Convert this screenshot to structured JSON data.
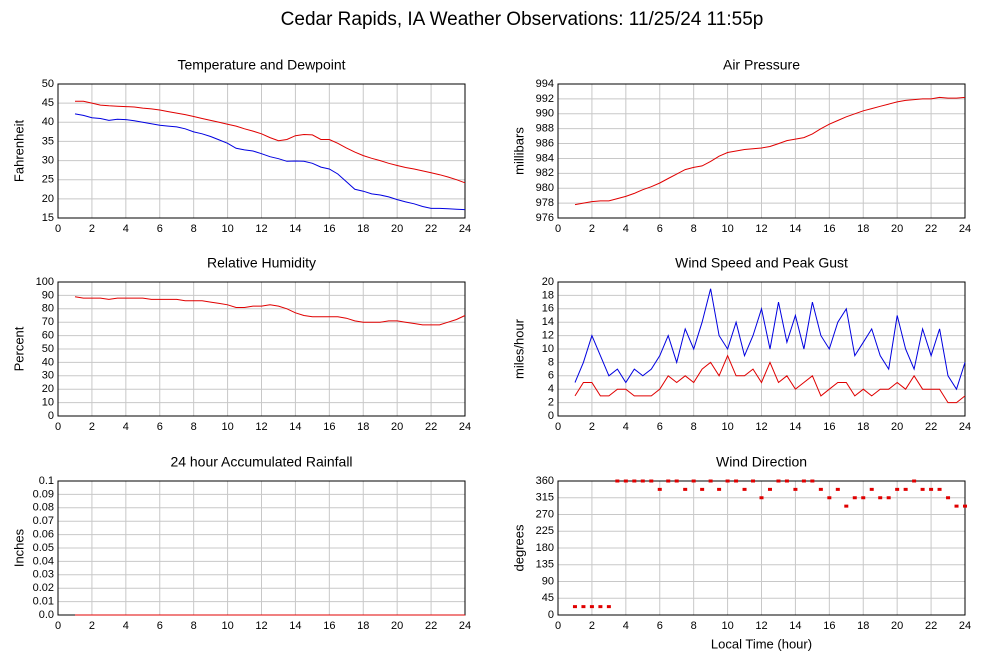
{
  "title": "Cedar Rapids, IA Weather Observations: 11/25/24 11:55p",
  "chart_data": [
    {
      "type": "line",
      "title": "Temperature and Dewpoint",
      "ylabel": "Fahrenheit",
      "grid": true,
      "xlim": [
        0,
        24
      ],
      "xticks": [
        0,
        2,
        4,
        6,
        8,
        10,
        12,
        14,
        16,
        18,
        20,
        22,
        24
      ],
      "ylim": [
        15,
        50
      ],
      "yticks": [
        15,
        20,
        25,
        30,
        35,
        40,
        45,
        50
      ],
      "x": [
        1,
        1.5,
        2,
        2.5,
        3,
        3.5,
        4,
        4.5,
        5,
        5.5,
        6,
        6.5,
        7,
        7.5,
        8,
        8.5,
        9,
        9.5,
        10,
        10.5,
        11,
        11.5,
        12,
        12.5,
        13,
        13.5,
        14,
        14.5,
        15,
        15.5,
        16,
        16.5,
        17,
        17.5,
        18,
        18.5,
        19,
        19.5,
        20,
        20.5,
        21,
        21.5,
        22,
        22.5,
        23,
        23.5,
        24
      ],
      "series": [
        {
          "color": "#e00000",
          "values": [
            45.5,
            45.5,
            45,
            44.5,
            44.3,
            44.2,
            44.1,
            44,
            43.7,
            43.5,
            43.2,
            42.8,
            42.4,
            42,
            41.5,
            41,
            40.5,
            40,
            39.5,
            39,
            38.3,
            37.7,
            37,
            36,
            35.2,
            35.5,
            36.5,
            36.8,
            36.7,
            35.5,
            35.5,
            34.5,
            33.3,
            32.2,
            31.3,
            30.6,
            30,
            29.3,
            28.7,
            28.2,
            27.8,
            27.3,
            26.8,
            26.3,
            25.7,
            25,
            24.2
          ]
        },
        {
          "color": "#0000e0",
          "values": [
            42.2,
            41.8,
            41.2,
            41,
            40.5,
            40.8,
            40.7,
            40.4,
            40,
            39.6,
            39.2,
            39,
            38.8,
            38.3,
            37.5,
            37,
            36.3,
            35.4,
            34.5,
            33.2,
            32.8,
            32.5,
            31.8,
            31,
            30.5,
            29.8,
            29.9,
            29.8,
            29.3,
            28.3,
            27.8,
            26.5,
            24.5,
            22.5,
            22,
            21.3,
            21,
            20.5,
            19.8,
            19.2,
            18.7,
            18,
            17.5,
            17.5,
            17.4,
            17.3,
            17.2
          ]
        }
      ]
    },
    {
      "type": "line",
      "title": "Air Pressure",
      "ylabel": "millibars",
      "grid": true,
      "xlim": [
        0,
        24
      ],
      "xticks": [
        0,
        2,
        4,
        6,
        8,
        10,
        12,
        14,
        16,
        18,
        20,
        22,
        24
      ],
      "ylim": [
        976,
        994
      ],
      "yticks": [
        976,
        978,
        980,
        982,
        984,
        986,
        988,
        990,
        992,
        994
      ],
      "x": [
        1,
        1.5,
        2,
        2.5,
        3,
        3.5,
        4,
        4.5,
        5,
        5.5,
        6,
        6.5,
        7,
        7.5,
        8,
        8.5,
        9,
        9.5,
        10,
        10.5,
        11,
        11.5,
        12,
        12.5,
        13,
        13.5,
        14,
        14.5,
        15,
        15.5,
        16,
        16.5,
        17,
        17.5,
        18,
        18.5,
        19,
        19.5,
        20,
        20.5,
        21,
        21.5,
        22,
        22.5,
        23,
        23.5,
        24
      ],
      "series": [
        {
          "color": "#e00000",
          "values": [
            977.8,
            978,
            978.2,
            978.3,
            978.3,
            978.6,
            978.9,
            979.3,
            979.8,
            980.2,
            980.7,
            981.3,
            981.9,
            982.5,
            982.8,
            983,
            983.6,
            984.3,
            984.8,
            985,
            985.2,
            985.3,
            985.4,
            985.6,
            986,
            986.4,
            986.6,
            986.8,
            987.3,
            988,
            988.6,
            989.1,
            989.6,
            990,
            990.4,
            990.7,
            991,
            991.3,
            991.6,
            991.8,
            991.9,
            992,
            992,
            992.2,
            992.1,
            992.1,
            992.2
          ]
        }
      ]
    },
    {
      "type": "line",
      "title": "Relative Humidity",
      "ylabel": "Percent",
      "grid": true,
      "xlim": [
        0,
        24
      ],
      "xticks": [
        0,
        2,
        4,
        6,
        8,
        10,
        12,
        14,
        16,
        18,
        20,
        22,
        24
      ],
      "ylim": [
        0,
        100
      ],
      "yticks": [
        0,
        10,
        20,
        30,
        40,
        50,
        60,
        70,
        80,
        90,
        100
      ],
      "x": [
        1,
        1.5,
        2,
        2.5,
        3,
        3.5,
        4,
        4.5,
        5,
        5.5,
        6,
        6.5,
        7,
        7.5,
        8,
        8.5,
        9,
        9.5,
        10,
        10.5,
        11,
        11.5,
        12,
        12.5,
        13,
        13.5,
        14,
        14.5,
        15,
        15.5,
        16,
        16.5,
        17,
        17.5,
        18,
        18.5,
        19,
        19.5,
        20,
        20.5,
        21,
        21.5,
        22,
        22.5,
        23,
        23.5,
        24
      ],
      "series": [
        {
          "color": "#e00000",
          "values": [
            89,
            88,
            88,
            88,
            87,
            88,
            88,
            88,
            88,
            87,
            87,
            87,
            87,
            86,
            86,
            86,
            85,
            84,
            83,
            81,
            81,
            82,
            82,
            83,
            82,
            80,
            77,
            75,
            74,
            74,
            74,
            74,
            73,
            71,
            70,
            70,
            70,
            71,
            71,
            70,
            69,
            68,
            68,
            68,
            70,
            72,
            75
          ]
        }
      ]
    },
    {
      "type": "line",
      "title": "Wind Speed and Peak Gust",
      "ylabel": "miles/hour",
      "grid": true,
      "xlim": [
        0,
        24
      ],
      "xticks": [
        0,
        2,
        4,
        6,
        8,
        10,
        12,
        14,
        16,
        18,
        20,
        22,
        24
      ],
      "ylim": [
        0,
        20
      ],
      "yticks": [
        0,
        2,
        4,
        6,
        8,
        10,
        12,
        14,
        16,
        18,
        20
      ],
      "x": [
        1,
        1.5,
        2,
        2.5,
        3,
        3.5,
        4,
        4.5,
        5,
        5.5,
        6,
        6.5,
        7,
        7.5,
        8,
        8.5,
        9,
        9.5,
        10,
        10.5,
        11,
        11.5,
        12,
        12.5,
        13,
        13.5,
        14,
        14.5,
        15,
        15.5,
        16,
        16.5,
        17,
        17.5,
        18,
        18.5,
        19,
        19.5,
        20,
        20.5,
        21,
        21.5,
        22,
        22.5,
        23,
        23.5,
        24
      ],
      "series": [
        {
          "color": "#0000e0",
          "values": [
            5,
            8,
            12,
            9,
            6,
            7,
            5,
            7,
            6,
            7,
            9,
            12,
            8,
            13,
            10,
            14,
            19,
            12,
            10,
            14,
            9,
            12,
            16,
            10,
            17,
            11,
            15,
            10,
            17,
            12,
            10,
            14,
            16,
            9,
            11,
            13,
            9,
            7,
            15,
            10,
            7,
            13,
            9,
            13,
            6,
            4,
            8
          ]
        },
        {
          "color": "#e00000",
          "values": [
            3,
            5,
            5,
            3,
            3,
            4,
            4,
            3,
            3,
            3,
            4,
            6,
            5,
            6,
            5,
            7,
            8,
            6,
            9,
            6,
            6,
            7,
            5,
            8,
            5,
            6,
            4,
            5,
            6,
            3,
            4,
            5,
            5,
            3,
            4,
            3,
            4,
            4,
            5,
            4,
            6,
            4,
            4,
            4,
            2,
            2,
            3
          ]
        }
      ]
    },
    {
      "type": "line",
      "title": "24 hour Accumulated Rainfall",
      "ylabel": "Inches",
      "grid": true,
      "xlim": [
        0,
        24
      ],
      "xticks": [
        0,
        2,
        4,
        6,
        8,
        10,
        12,
        14,
        16,
        18,
        20,
        22,
        24
      ],
      "ylim": [
        0,
        0.1
      ],
      "yticks": [
        {
          "value": 0,
          "label": "0.0"
        },
        0.01,
        0.02,
        0.03,
        0.04,
        0.05,
        0.06,
        0.07,
        0.08,
        0.09,
        0.1
      ],
      "x": [
        1,
        1.5,
        2,
        2.5,
        3,
        3.5,
        4,
        4.5,
        5,
        5.5,
        6,
        6.5,
        7,
        7.5,
        8,
        8.5,
        9,
        9.5,
        10,
        10.5,
        11,
        11.5,
        12,
        12.5,
        13,
        13.5,
        14,
        14.5,
        15,
        15.5,
        16,
        16.5,
        17,
        17.5,
        18,
        18.5,
        19,
        19.5,
        20,
        20.5,
        21,
        21.5,
        22,
        22.5,
        23,
        23.5,
        24
      ],
      "series": [
        {
          "color": "#e00000",
          "values": [
            0,
            0,
            0,
            0,
            0,
            0,
            0,
            0,
            0,
            0,
            0,
            0,
            0,
            0,
            0,
            0,
            0,
            0,
            0,
            0,
            0,
            0,
            0,
            0,
            0,
            0,
            0,
            0,
            0,
            0,
            0,
            0,
            0,
            0,
            0,
            0,
            0,
            0,
            0,
            0,
            0,
            0,
            0,
            0,
            0,
            0,
            0
          ]
        }
      ]
    },
    {
      "type": "scatter",
      "title": "Wind Direction",
      "ylabel": "degrees",
      "xlabel": "Local Time (hour)",
      "grid": true,
      "xlim": [
        0,
        24
      ],
      "xticks": [
        0,
        2,
        4,
        6,
        8,
        10,
        12,
        14,
        16,
        18,
        20,
        22,
        24
      ],
      "ylim": [
        0,
        360
      ],
      "yticks": [
        0,
        45,
        90,
        135,
        180,
        225,
        270,
        315,
        360
      ],
      "x": [
        1,
        1.5,
        2,
        2.5,
        3,
        3.5,
        4,
        4.5,
        5,
        5.5,
        6,
        6.5,
        7,
        7.5,
        8,
        8.5,
        9,
        9.5,
        10,
        10.5,
        11,
        11.5,
        12,
        12.5,
        13,
        13.5,
        14,
        14.5,
        15,
        15.5,
        16,
        16.5,
        17,
        17.5,
        18,
        18.5,
        19,
        19.5,
        20,
        20.5,
        21,
        21.5,
        22,
        22.5,
        23,
        23.5,
        24
      ],
      "series": [
        {
          "color": "#e00000",
          "values": [
            22.5,
            22.5,
            22.5,
            22.5,
            22.5,
            360,
            360,
            360,
            360,
            360,
            337.5,
            360,
            360,
            337.5,
            360,
            337.5,
            360,
            337.5,
            360,
            360,
            337.5,
            360,
            315,
            337.5,
            360,
            360,
            337.5,
            360,
            360,
            337.5,
            315,
            337.5,
            292.5,
            315,
            315,
            337.5,
            315,
            315,
            337.5,
            337.5,
            360,
            337.5,
            337.5,
            337.5,
            315,
            292.5,
            292.5
          ]
        }
      ]
    }
  ]
}
